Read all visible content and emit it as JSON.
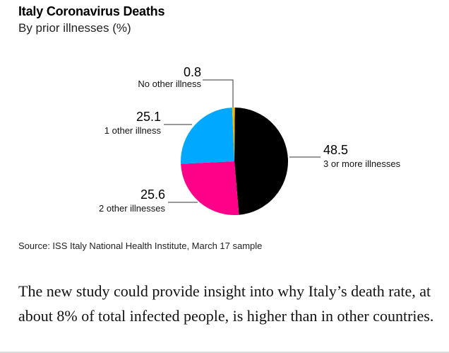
{
  "chart_data": {
    "type": "pie",
    "title": "Italy Coronavirus Deaths",
    "subtitle": "By prior illnesses (%)",
    "slices": [
      {
        "label": "3 or more illnesses",
        "value": 48.5,
        "value_text": "48.5",
        "color": "#000000"
      },
      {
        "label": "2 other illnesses",
        "value": 25.6,
        "value_text": "25.6",
        "color": "#ff0088"
      },
      {
        "label": "1 other illness",
        "value": 25.1,
        "value_text": "25.1",
        "color": "#00a8ff"
      },
      {
        "label": "No other illness",
        "value": 0.8,
        "value_text": "0.8",
        "color": "#f5b800"
      }
    ],
    "source": "Source: ISS Italy National Health Institute, March 17 sample"
  },
  "article": {
    "paragraph": "The new study could provide insight into why Italy’s death rate, at about 8% of total infected people, is higher than in other countries."
  }
}
